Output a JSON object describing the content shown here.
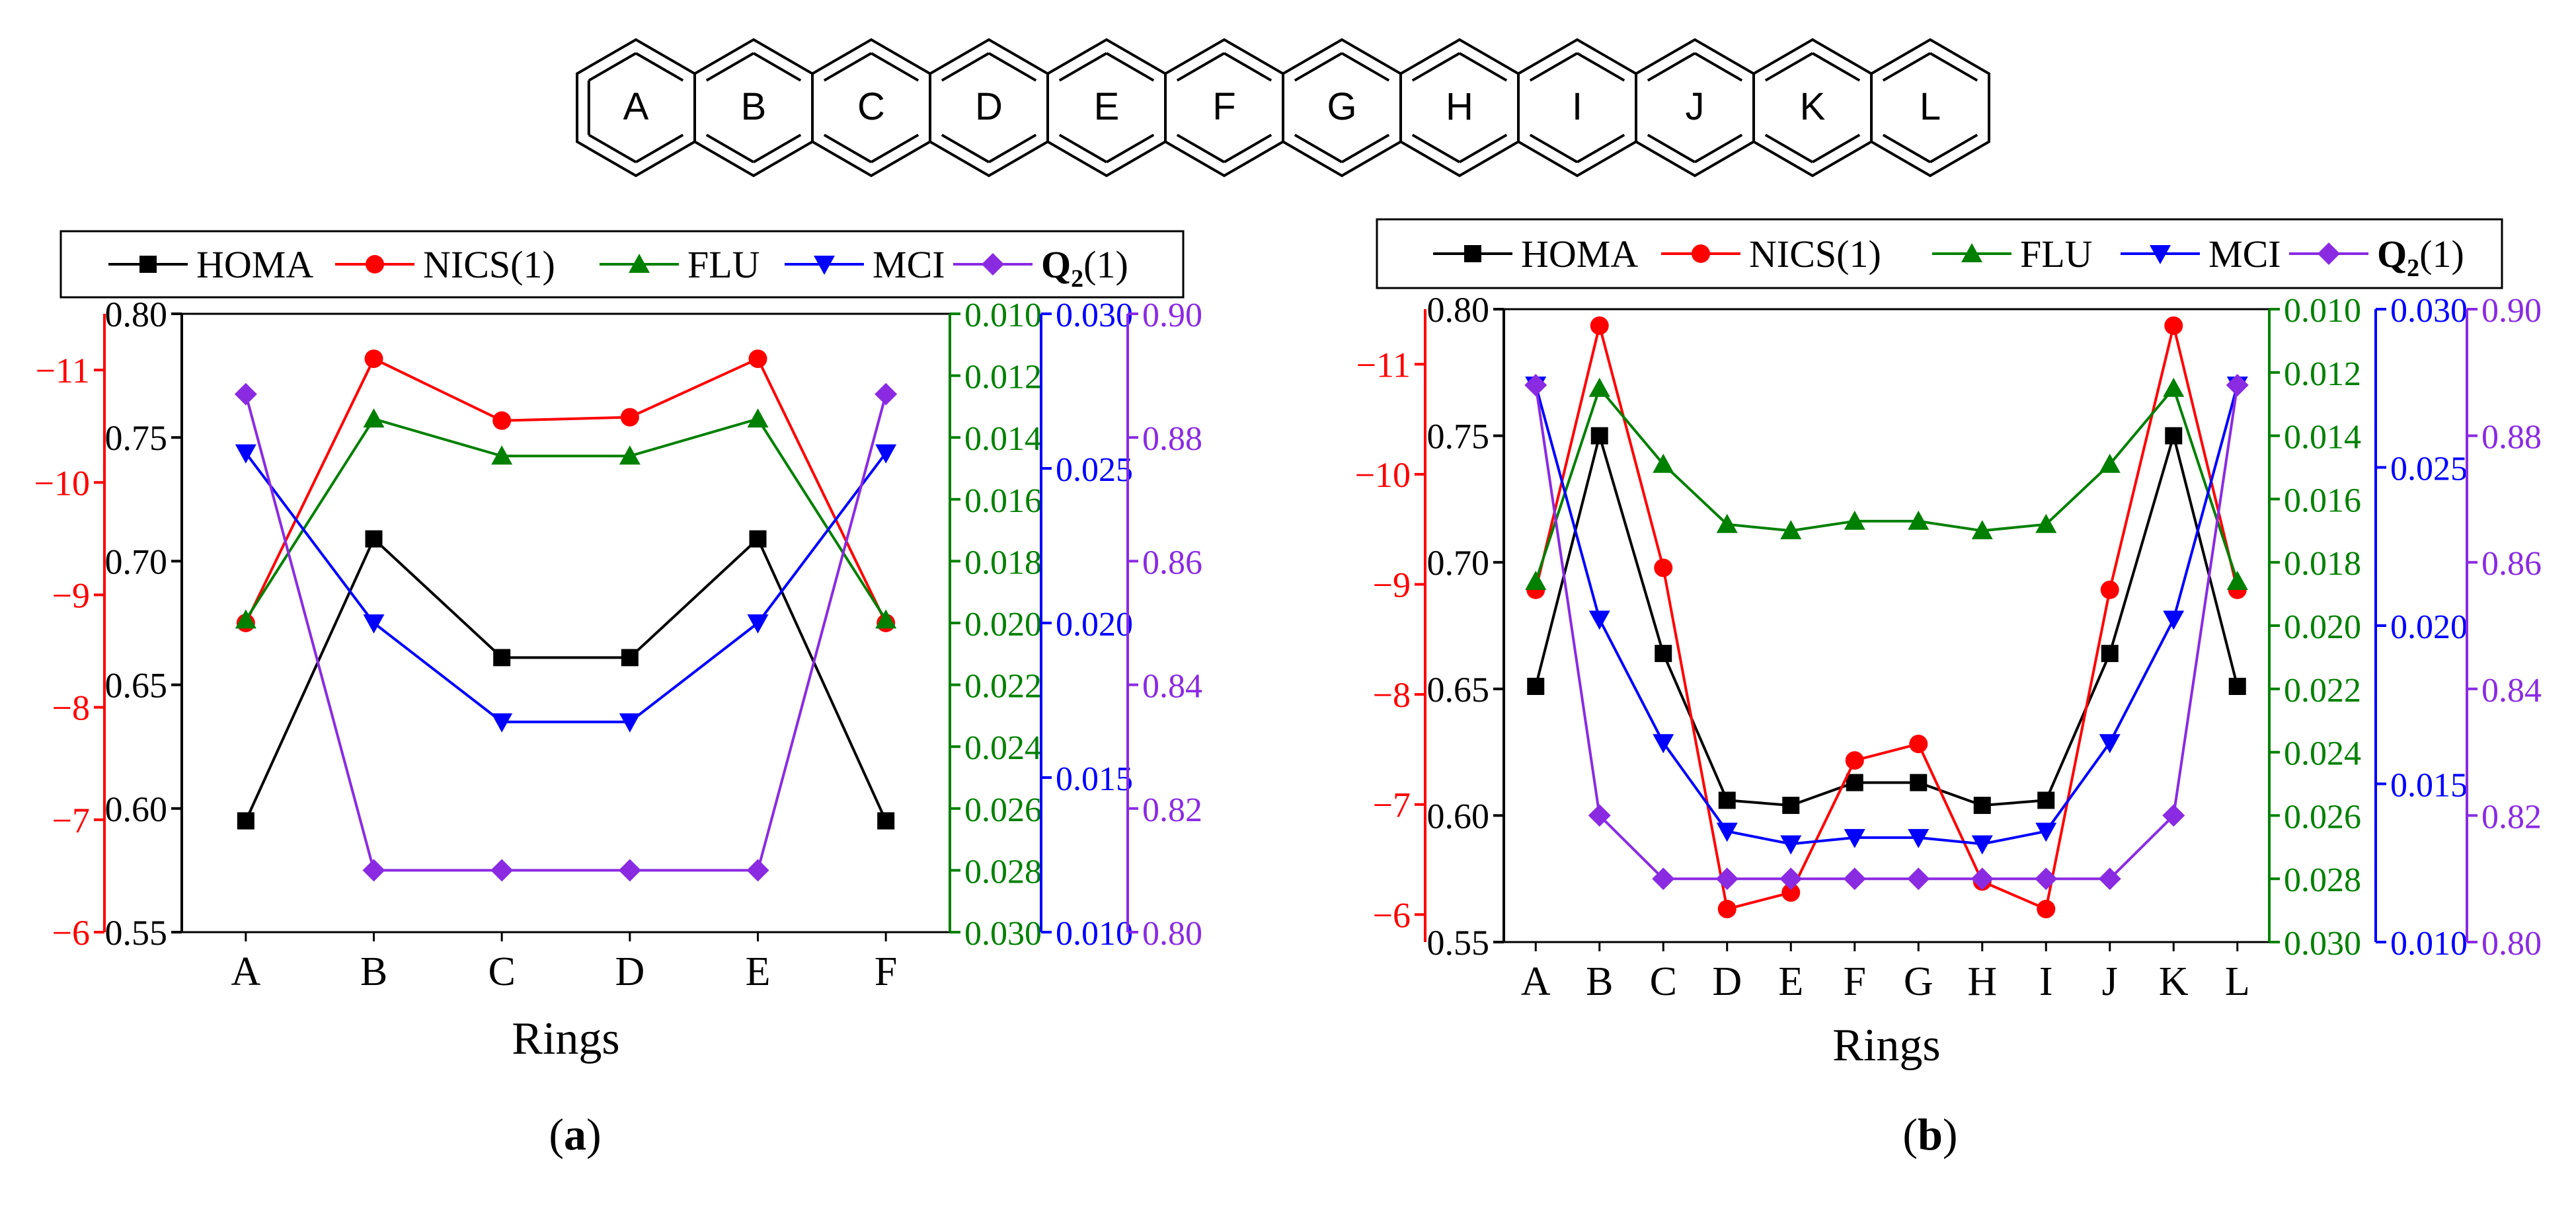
{
  "molecule": {
    "rings": [
      "A",
      "B",
      "C",
      "D",
      "E",
      "F",
      "G",
      "H",
      "I",
      "J",
      "K",
      "L"
    ]
  },
  "legend": {
    "homa": "HOMA",
    "nics": "NICS(1)",
    "flu": "FLU",
    "mci": "MCI",
    "q2_main": "Q",
    "q2_sub": "2",
    "q2_tail": "(1)"
  },
  "colors": {
    "homa": "#000000",
    "nics": "#ff0000",
    "flu": "#008000",
    "mci": "#0000ff",
    "q2": "#8a2be2"
  },
  "chart_data": [
    {
      "panel_label": "(a)",
      "panel_letter": "a",
      "type": "line",
      "xlabel": "Rings",
      "categories": [
        "A",
        "B",
        "C",
        "D",
        "E",
        "F"
      ],
      "axes": {
        "homa": {
          "range": [
            0.55,
            0.8
          ],
          "ticks": [
            0.55,
            0.6,
            0.65,
            0.7,
            0.75,
            0.8
          ],
          "labels": [
            "0.55",
            "0.60",
            "0.65",
            "0.70",
            "0.75",
            "0.80"
          ]
        },
        "nics": {
          "range": [
            -6,
            -11.5
          ],
          "ticks": [
            -6,
            -7,
            -8,
            -9,
            -10,
            -11
          ],
          "labels": [
            "−6",
            "−7",
            "−8",
            "−9",
            "−10",
            "−11"
          ]
        },
        "flu": {
          "range": [
            0.03,
            0.01
          ],
          "ticks": [
            0.03,
            0.028,
            0.026,
            0.024,
            0.022,
            0.02,
            0.018,
            0.016,
            0.014,
            0.012,
            0.01
          ],
          "labels": [
            "0.030",
            "0.028",
            "0.026",
            "0.024",
            "0.022",
            "0.020",
            "0.018",
            "0.016",
            "0.014",
            "0.012",
            "0.010"
          ]
        },
        "mci": {
          "range": [
            0.01,
            0.03
          ],
          "ticks": [
            0.01,
            0.015,
            0.02,
            0.025,
            0.03
          ],
          "labels": [
            "0.010",
            "0.015",
            "0.020",
            "0.025",
            "0.030"
          ]
        },
        "q2": {
          "range": [
            0.8,
            0.9
          ],
          "ticks": [
            0.8,
            0.82,
            0.84,
            0.86,
            0.88,
            0.9
          ],
          "labels": [
            "0.80",
            "0.82",
            "0.84",
            "0.86",
            "0.88",
            "0.90"
          ]
        }
      },
      "series": {
        "homa": [
          0.595,
          0.709,
          0.661,
          0.661,
          0.709,
          0.595
        ],
        "nics": [
          -8.75,
          -11.1,
          -10.55,
          -10.58,
          -11.1,
          -8.75
        ],
        "flu": [
          0.0199,
          0.0134,
          0.0146,
          0.0146,
          0.0134,
          0.0199
        ],
        "mci": [
          0.0255,
          0.02,
          0.0168,
          0.0168,
          0.02,
          0.0255
        ],
        "q2": [
          0.887,
          0.81,
          0.81,
          0.81,
          0.81,
          0.887
        ]
      }
    },
    {
      "panel_label": "(b)",
      "panel_letter": "b",
      "type": "line",
      "xlabel": "Rings",
      "categories": [
        "A",
        "B",
        "C",
        "D",
        "E",
        "F",
        "G",
        "H",
        "I",
        "J",
        "K",
        "L"
      ],
      "axes": {
        "homa": {
          "range": [
            0.55,
            0.8
          ],
          "ticks": [
            0.55,
            0.6,
            0.65,
            0.7,
            0.75,
            0.8
          ],
          "labels": [
            "0.55",
            "0.60",
            "0.65",
            "0.70",
            "0.75",
            "0.80"
          ]
        },
        "nics": {
          "range": [
            -5.75,
            -11.5
          ],
          "ticks": [
            -6,
            -7,
            -8,
            -9,
            -10,
            -11
          ],
          "labels": [
            "−6",
            "−7",
            "−8",
            "−9",
            "−10",
            "−11"
          ]
        },
        "flu": {
          "range": [
            0.03,
            0.01
          ],
          "ticks": [
            0.03,
            0.028,
            0.026,
            0.024,
            0.022,
            0.02,
            0.018,
            0.016,
            0.014,
            0.012,
            0.01
          ],
          "labels": [
            "0.030",
            "0.028",
            "0.026",
            "0.024",
            "0.022",
            "0.020",
            "0.018",
            "0.016",
            "0.014",
            "0.012",
            "0.010"
          ]
        },
        "mci": {
          "range": [
            0.01,
            0.03
          ],
          "ticks": [
            0.01,
            0.015,
            0.02,
            0.025,
            0.03
          ],
          "labels": [
            "0.010",
            "0.015",
            "0.020",
            "0.025",
            "0.030"
          ]
        },
        "q2": {
          "range": [
            0.8,
            0.9
          ],
          "ticks": [
            0.8,
            0.82,
            0.84,
            0.86,
            0.88,
            0.9
          ],
          "labels": [
            "0.80",
            "0.82",
            "0.84",
            "0.86",
            "0.88",
            "0.90"
          ]
        }
      },
      "series": {
        "homa": [
          0.651,
          0.75,
          0.664,
          0.606,
          0.604,
          0.613,
          0.613,
          0.604,
          0.606,
          0.664,
          0.75,
          0.651
        ],
        "nics": [
          -8.95,
          -11.35,
          -9.15,
          -6.05,
          -6.2,
          -7.4,
          -7.55,
          -6.3,
          -6.05,
          -8.95,
          -11.35,
          -8.95
        ],
        "flu": [
          0.0186,
          0.0125,
          0.0149,
          0.0168,
          0.017,
          0.0167,
          0.0167,
          0.017,
          0.0168,
          0.0149,
          0.0125,
          0.0186
        ],
        "mci": [
          0.0276,
          0.0202,
          0.0163,
          0.0135,
          0.0131,
          0.0133,
          0.0133,
          0.0131,
          0.0135,
          0.0163,
          0.0202,
          0.0276
        ],
        "q2": [
          0.888,
          0.82,
          0.81,
          0.81,
          0.81,
          0.81,
          0.81,
          0.81,
          0.81,
          0.81,
          0.82,
          0.888
        ]
      }
    }
  ]
}
